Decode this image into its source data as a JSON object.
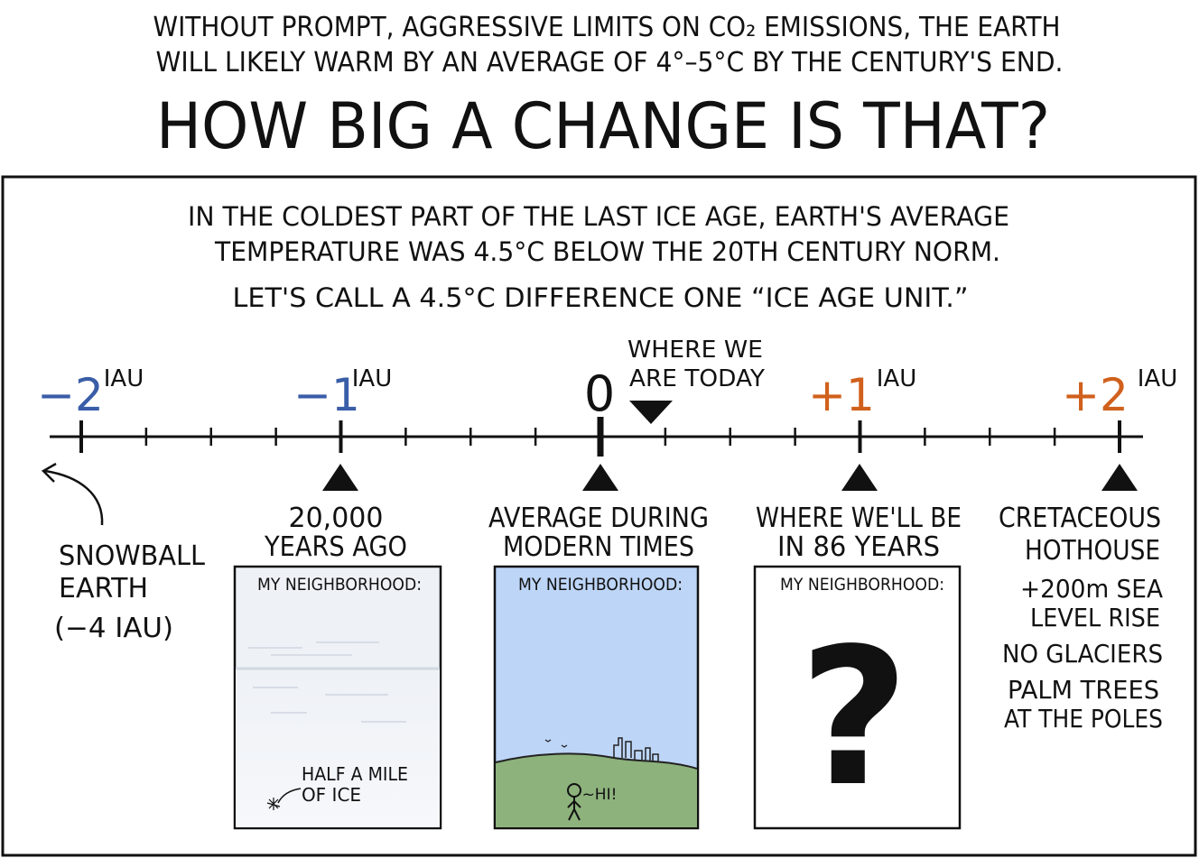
{
  "header": {
    "subtitle": [
      "WITHOUT PROMPT, AGGRESSIVE LIMITS ON CO₂ EMISSIONS, THE EARTH",
      "WILL LIKELY WARM BY AN AVERAGE OF 4°–5°C BY THE CENTURY'S END."
    ],
    "title": "HOW BIG A CHANGE IS THAT?"
  },
  "intro": [
    "IN THE COLDEST PART OF THE LAST ICE AGE, EARTH'S AVERAGE",
    "TEMPERATURE WAS 4.5°C BELOW THE 20TH CENTURY NORM.",
    "LET'S CALL A 4.5°C DIFFERENCE ONE “ICE AGE UNIT.”"
  ],
  "timeline": {
    "marks": [
      {
        "label": "−2",
        "unit": "IAU"
      },
      {
        "label": "−1",
        "unit": "IAU"
      },
      {
        "label": "0"
      },
      {
        "label": "+1",
        "unit": "IAU"
      },
      {
        "label": "+2",
        "unit": "IAU"
      }
    ],
    "today": [
      "WHERE WE",
      "ARE TODAY"
    ],
    "snowball": [
      "SNOWBALL",
      "EARTH",
      "(−4 IAU)"
    ]
  },
  "captions": [
    [
      "20,000",
      "YEARS AGO"
    ],
    [
      "AVERAGE DURING",
      "MODERN TIMES"
    ],
    [
      "WHERE WE'LL BE",
      "IN 86 YEARS"
    ],
    [
      "CRETACEOUS",
      "HOTHOUSE"
    ]
  ],
  "panels": [
    {
      "heading": "MY NEIGHBORHOOD:",
      "note": [
        "HALF A MILE",
        "OF ICE"
      ]
    },
    {
      "heading": "MY NEIGHBORHOOD:",
      "note": [
        "~HI!"
      ]
    },
    {
      "heading": "MY NEIGHBORHOOD:",
      "note": [
        "?"
      ]
    }
  ],
  "cretaceous": [
    "+200m SEA",
    "LEVEL RISE",
    "NO GLACIERS",
    "PALM TREES",
    "AT THE POLES"
  ]
}
